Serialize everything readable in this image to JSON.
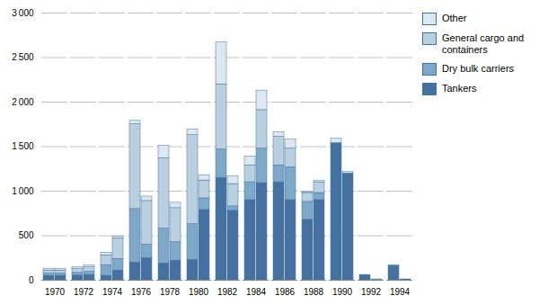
{
  "chart_data": {
    "type": "bar",
    "stacked": true,
    "grid": true,
    "legend": "upper right",
    "categories": [
      "1970",
      "1972",
      "1974",
      "1976",
      "1978",
      "1980",
      "1982",
      "1984",
      "1986",
      "1988",
      "1990",
      "1992",
      "1994"
    ],
    "ylim": [
      0,
      3000
    ],
    "yticks": [
      0,
      500,
      {
        "value": 1000,
        "label": "1 000"
      },
      {
        "value": 1500,
        "label": "1 500"
      },
      {
        "value": 2000,
        "label": "2 000"
      },
      {
        "value": 2500,
        "label": "2 500"
      },
      {
        "value": 3000,
        "label": "3 000"
      }
    ],
    "series": [
      {
        "name": "Tankers",
        "color": "#4472a0",
        "values": [
          [
            50,
            50
          ],
          [
            55,
            60
          ],
          [
            50,
            110
          ],
          [
            200,
            250
          ],
          [
            190,
            220
          ],
          [
            230,
            790
          ],
          [
            1150,
            780
          ],
          [
            900,
            1090
          ],
          [
            1100,
            900
          ],
          [
            680,
            900
          ],
          [
            1540,
            1200
          ],
          [
            60,
            0
          ],
          [
            160,
            10
          ]
        ]
      },
      {
        "name": "Dry bulk carriers",
        "color": "#7da8c8",
        "values": [
          [
            25,
            25
          ],
          [
            30,
            35
          ],
          [
            120,
            130
          ],
          [
            600,
            150
          ],
          [
            390,
            210
          ],
          [
            400,
            130
          ],
          [
            320,
            50
          ],
          [
            200,
            390
          ],
          [
            190,
            370
          ],
          [
            200,
            80
          ],
          [
            0,
            0
          ],
          [
            0,
            10
          ],
          [
            5,
            0
          ]
        ]
      },
      {
        "name": "General cargo and\ncontainers",
        "color": "#b8d0e0",
        "values": [
          [
            35,
            35
          ],
          [
            40,
            50
          ],
          [
            110,
            230
          ],
          [
            950,
            490
          ],
          [
            790,
            380
          ],
          [
            1000,
            200
          ],
          [
            730,
            250
          ],
          [
            190,
            430
          ],
          [
            320,
            210
          ],
          [
            100,
            120
          ],
          [
            0,
            0
          ],
          [
            0,
            0
          ],
          [
            0,
            0
          ]
        ]
      },
      {
        "name": "Other",
        "color": "#dce8f0",
        "values": [
          [
            20,
            20
          ],
          [
            20,
            20
          ],
          [
            30,
            20
          ],
          [
            40,
            50
          ],
          [
            140,
            60
          ],
          [
            60,
            60
          ],
          [
            470,
            90
          ],
          [
            100,
            220
          ],
          [
            50,
            100
          ],
          [
            10,
            20
          ],
          [
            50,
            15
          ],
          [
            0,
            0
          ],
          [
            0,
            0
          ]
        ]
      }
    ]
  }
}
